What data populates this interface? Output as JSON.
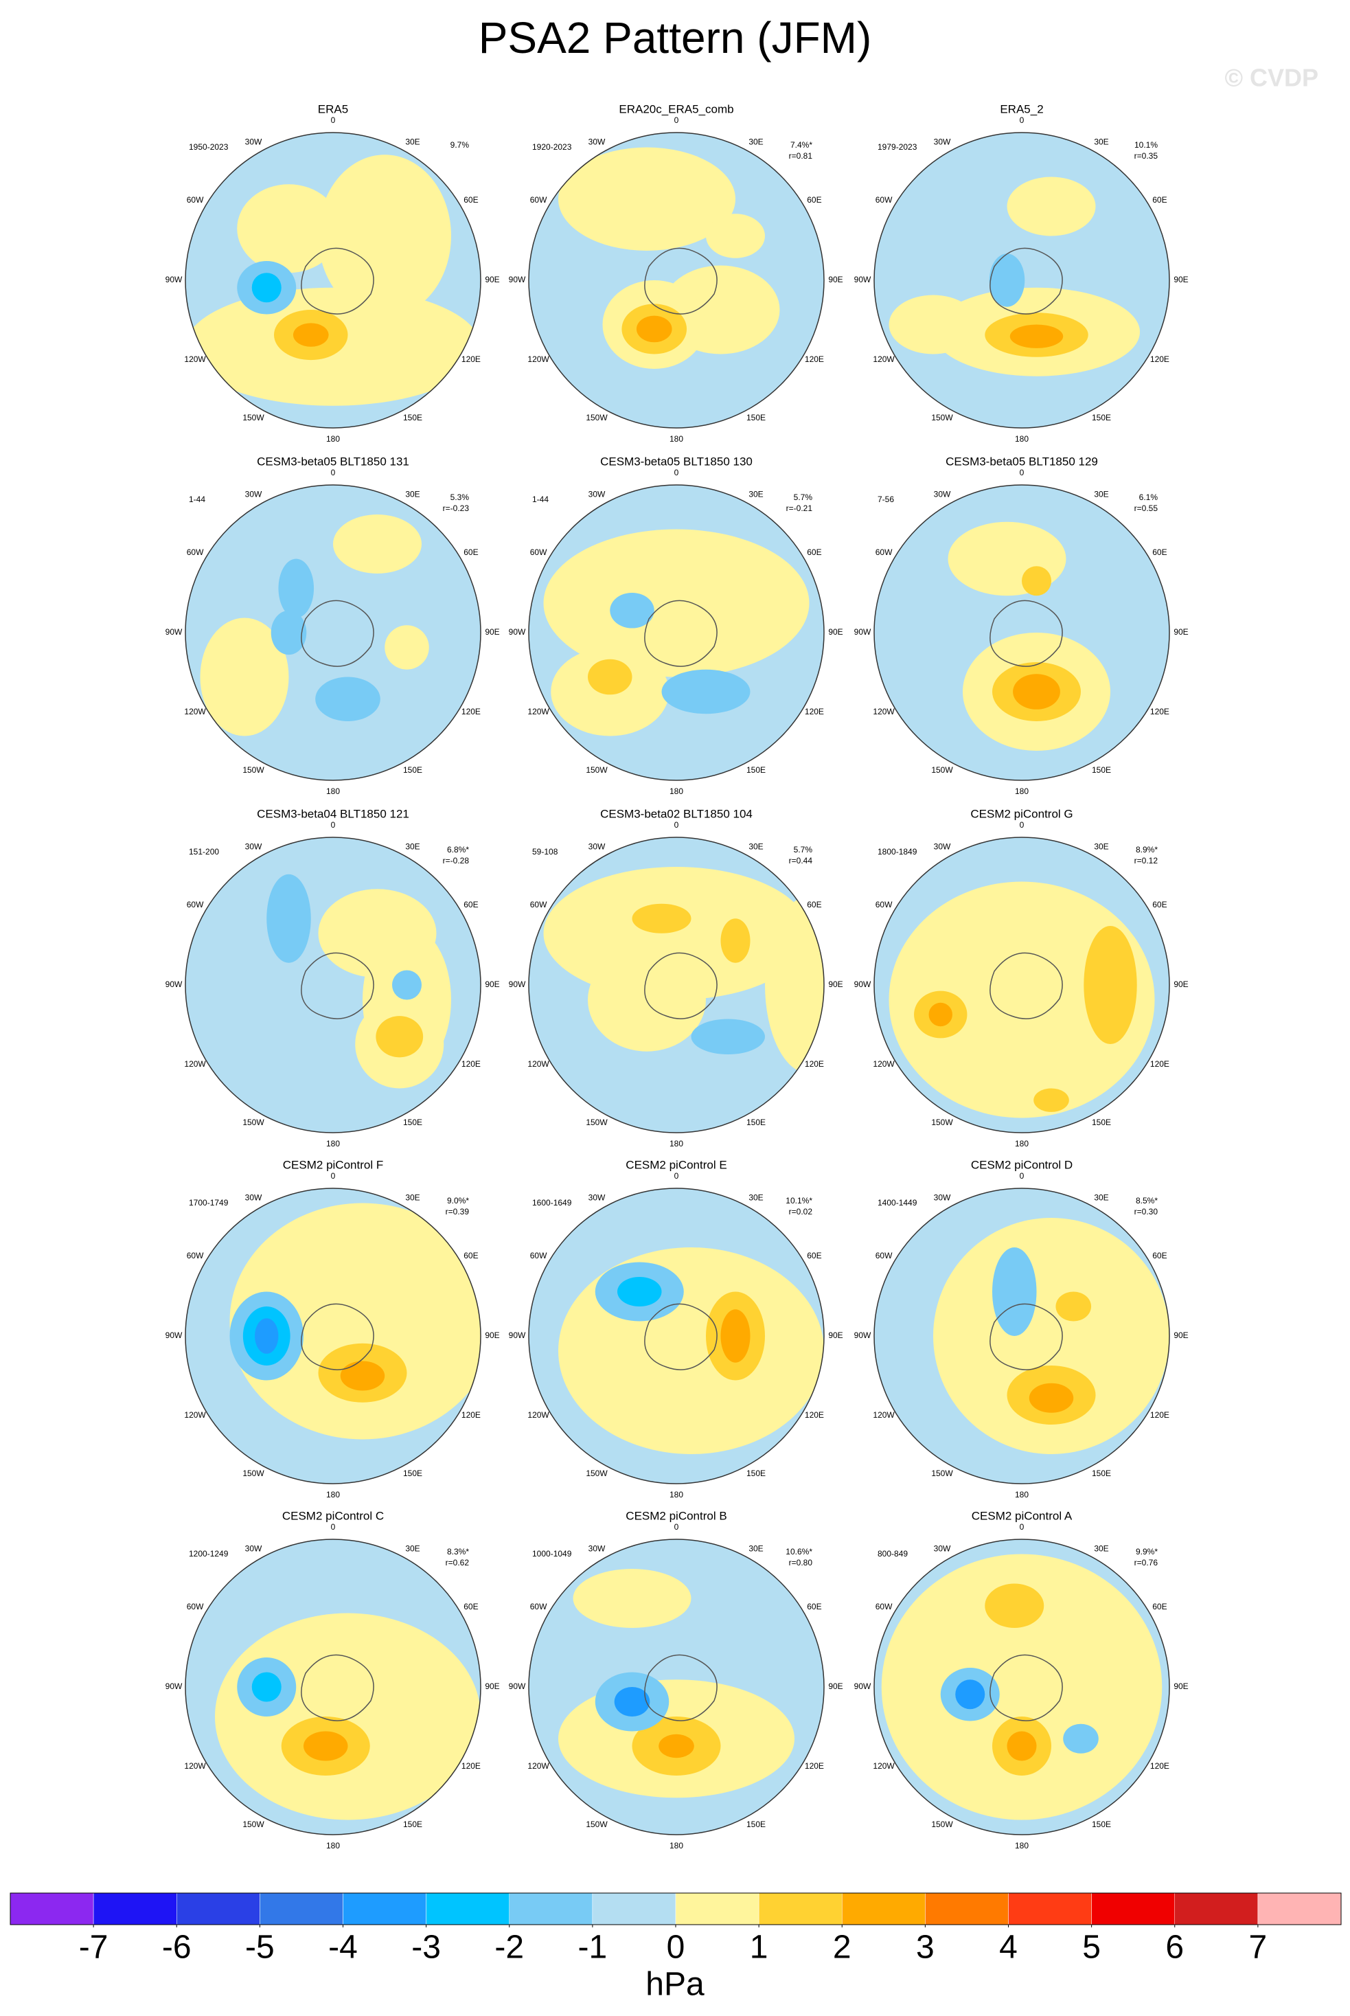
{
  "title": "PSA2 Pattern (JFM)",
  "watermark": "© CVDP",
  "lon_labels": [
    "0",
    "30E",
    "60E",
    "90E",
    "120E",
    "150E",
    "180",
    "150W",
    "120W",
    "90W",
    "60W",
    "30W"
  ],
  "panels": [
    {
      "title": "ERA5",
      "period": "1950-2023",
      "variance": "9.7%"
    },
    {
      "title": "ERA20c_ERA5_comb",
      "period": "1920-2023",
      "variance": "7.4%*",
      "corr": "r=0.81"
    },
    {
      "title": "ERA5_2",
      "period": "1979-2023",
      "variance": "10.1%",
      "corr": "r=0.35"
    },
    {
      "title": "CESM3-beta05 BLT1850 131",
      "period": "1-44",
      "variance": "5.3%",
      "corr": "r=-0.23"
    },
    {
      "title": "CESM3-beta05 BLT1850 130",
      "period": "1-44",
      "variance": "5.7%",
      "corr": "r=-0.21"
    },
    {
      "title": "CESM3-beta05 BLT1850 129",
      "period": "7-56",
      "variance": "6.1%",
      "corr": "r=0.55"
    },
    {
      "title": "CESM3-beta04 BLT1850 121",
      "period": "151-200",
      "variance": "6.8%*",
      "corr": "r=-0.28"
    },
    {
      "title": "CESM3-beta02 BLT1850 104",
      "period": "59-108",
      "variance": "5.7%",
      "corr": "r=0.44"
    },
    {
      "title": "CESM2 piControl G",
      "period": "1800-1849",
      "variance": "8.9%*",
      "corr": "r=0.12"
    },
    {
      "title": "CESM2 piControl F",
      "period": "1700-1749",
      "variance": "9.0%*",
      "corr": "r=0.39"
    },
    {
      "title": "CESM2 piControl E",
      "period": "1600-1649",
      "variance": "10.1%*",
      "corr": "r=0.02"
    },
    {
      "title": "CESM2 piControl D",
      "period": "1400-1449",
      "variance": "8.5%*",
      "corr": "r=0.30"
    },
    {
      "title": "CESM2 piControl C",
      "period": "1200-1249",
      "variance": "8.3%*",
      "corr": "r=0.62"
    },
    {
      "title": "CESM2 piControl B",
      "period": "1000-1049",
      "variance": "10.6%*",
      "corr": "r=0.80"
    },
    {
      "title": "CESM2 piControl A",
      "period": "800-849",
      "variance": "9.9%*",
      "corr": "r=0.76"
    }
  ],
  "colorbar": {
    "levels": [
      -7,
      -6,
      -5,
      -4,
      -3,
      -2,
      -1,
      0,
      1,
      2,
      3,
      4,
      5,
      6,
      7
    ],
    "colors": [
      "#8c28f0",
      "#1e14f5",
      "#2a40e6",
      "#3278e8",
      "#1e9cff",
      "#00c4ff",
      "#78cbf5",
      "#b4def2",
      "#fff59c",
      "#ffd232",
      "#ffaa00",
      "#ff7a00",
      "#ff3c14",
      "#f00000",
      "#d21e1e",
      "#ffb4b4"
    ],
    "label": "hPa"
  }
}
